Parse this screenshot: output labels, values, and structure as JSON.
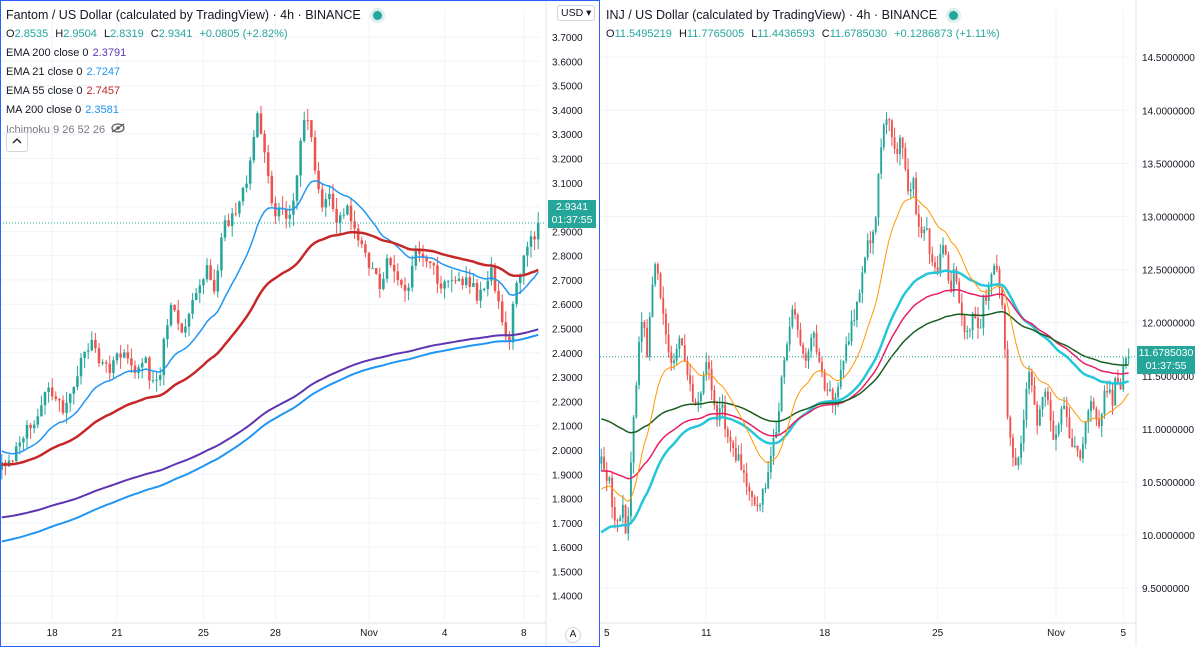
{
  "left": {
    "title": "Fantom / US Dollar (calculated by TradingView) · 4h · BINANCE",
    "ohlc": [
      {
        "k": "O",
        "v": "2.8535"
      },
      {
        "k": "H",
        "v": "2.9504"
      },
      {
        "k": "L",
        "v": "2.8319"
      },
      {
        "k": "C",
        "v": "2.9341"
      }
    ],
    "change": "+0.0805 (+2.82%)",
    "indicators": [
      {
        "label": "EMA 200 close 0",
        "value": "2.3791",
        "color": "#5e35b1"
      },
      {
        "label": "EMA 21 close 0",
        "value": "2.7247",
        "color": "#2196f3"
      },
      {
        "label": "EMA 55 close 0",
        "value": "2.7457",
        "color": "#c62828"
      },
      {
        "label": "MA 200 close 0",
        "value": "2.3581",
        "color": "#2196f3"
      }
    ],
    "ichimoku_label": "Ichimoku 9 26 52 26",
    "collapse_icon": "chevron-up-icon",
    "currency_button": "USD",
    "last_price_tag": {
      "price": "2.9341",
      "countdown": "01:37:55",
      "color": "#26a69a"
    },
    "auto_label": "A"
  },
  "right": {
    "title": "INJ / US Dollar (calculated by TradingView) · 4h · BINANCE",
    "ohlc": [
      {
        "k": "O",
        "v": "11.5495219"
      },
      {
        "k": "H",
        "v": "11.7765005"
      },
      {
        "k": "L",
        "v": "11.4436593"
      },
      {
        "k": "C",
        "v": "11.6785030"
      }
    ],
    "change": "+0.1286873 (+1.11%)",
    "last_price_tag": {
      "price": "11.6785030",
      "countdown": "01:37:55",
      "color": "#26a69a"
    }
  },
  "chart_data": [
    {
      "type": "candlestick",
      "title": "Fantom / US Dollar (calculated by TradingView) · 4h · BINANCE",
      "ylim": [
        1.3,
        3.77
      ],
      "yticks": [
        "1.4000",
        "1.5000",
        "1.6000",
        "1.7000",
        "1.8000",
        "1.9000",
        "2.0000",
        "2.1000",
        "2.2000",
        "2.3000",
        "2.4000",
        "2.5000",
        "2.6000",
        "2.7000",
        "2.8000",
        "2.9000",
        "3.0000",
        "3.1000",
        "3.2000",
        "3.3000",
        "3.4000",
        "3.5000",
        "3.6000",
        "3.7000"
      ],
      "xticks": [
        "18",
        "21",
        "25",
        "28",
        "Nov",
        "4",
        "8"
      ],
      "xtick_index": [
        14,
        32,
        56,
        76,
        102,
        123,
        145
      ],
      "bars": 150,
      "closes": [
        1.96,
        1.94,
        1.96,
        1.98,
        2.02,
        2.05,
        2.08,
        2.1,
        2.13,
        2.17,
        2.2,
        2.22,
        2.25,
        2.23,
        2.2,
        2.18,
        2.19,
        2.22,
        2.28,
        2.35,
        2.38,
        2.4,
        2.43,
        2.42,
        2.38,
        2.34,
        2.32,
        2.35,
        2.38,
        2.4,
        2.38,
        2.35,
        2.33,
        2.34,
        2.36,
        2.4,
        2.33,
        2.28,
        2.26,
        2.3,
        2.45,
        2.55,
        2.62,
        2.56,
        2.5,
        2.52,
        2.58,
        2.6,
        2.63,
        2.7,
        2.75,
        2.72,
        2.66,
        2.7,
        2.85,
        2.94,
        2.9,
        2.98,
        3.02,
        3.05,
        3.08,
        3.15,
        3.3,
        3.39,
        3.25,
        3.2,
        3.05,
        2.95,
        3.02,
        2.98,
        2.94,
        2.96,
        3.05,
        3.2,
        3.35,
        3.4,
        3.3,
        3.15,
        3.08,
        3.0,
        3.02,
        3.05,
        2.96,
        2.92,
        2.98,
        3.0,
        2.94,
        2.9,
        2.88,
        2.82,
        2.78,
        2.75,
        2.7,
        2.68,
        2.72,
        2.78,
        2.74,
        2.7,
        2.66,
        2.64,
        2.68,
        2.76,
        2.86,
        2.8,
        2.77,
        2.75,
        2.74,
        2.72,
        2.69,
        2.68,
        2.72,
        2.7,
        2.7,
        2.68,
        2.72,
        2.7,
        2.66,
        2.63,
        2.65,
        2.7,
        2.73,
        2.72,
        2.62,
        2.55,
        2.49,
        2.46,
        2.6,
        2.7,
        2.77,
        2.82,
        2.86,
        2.8535,
        2.9341
      ],
      "series": [
        {
          "name": "EMA 200 close 0",
          "value": 2.3791,
          "color": "#5e35b1"
        },
        {
          "name": "EMA 21 close 0",
          "value": 2.7247,
          "color": "#2196f3"
        },
        {
          "name": "EMA 55 close 0",
          "value": 2.7457,
          "color": "#c62828"
        },
        {
          "name": "MA 200 close 0",
          "value": 2.3581,
          "color": "#2196f3"
        }
      ],
      "last": 2.9341
    },
    {
      "type": "candlestick",
      "title": "INJ / US Dollar (calculated by TradingView) · 4h · BINANCE",
      "ylim": [
        9.2,
        14.85
      ],
      "yticks": [
        "9.5000000",
        "10.0000000",
        "10.5000000",
        "11.0000000",
        "11.5000000",
        "12.0000000",
        "12.5000000",
        "13.0000000",
        "13.5000000",
        "14.0000000",
        "14.5000000"
      ],
      "xticks": [
        "5",
        "11",
        "18",
        "25",
        "Nov",
        "5"
      ],
      "xtick_index": [
        2,
        39,
        83,
        125,
        169,
        194
      ],
      "bars": 197,
      "closes": [
        10.7,
        10.6,
        10.5,
        10.2,
        10.1,
        10.3,
        9.9,
        10.6,
        11.2,
        11.8,
        12.0,
        11.7,
        12.2,
        12.6,
        12.4,
        12.0,
        11.8,
        11.6,
        11.7,
        11.9,
        11.6,
        11.5,
        11.3,
        11.2,
        11.4,
        11.6,
        11.5,
        11.3,
        11.1,
        11.2,
        11.0,
        10.9,
        10.8,
        10.7,
        10.6,
        10.5,
        10.4,
        10.3,
        10.2,
        10.4,
        10.6,
        10.8,
        11.0,
        11.3,
        11.6,
        11.9,
        12.1,
        12.0,
        11.8,
        11.6,
        11.8,
        11.9,
        11.7,
        11.5,
        11.3,
        11.4,
        11.2,
        11.4,
        11.6,
        11.8,
        11.9,
        12.1,
        12.3,
        12.5,
        12.7,
        12.8,
        13.0,
        13.5,
        13.8,
        14.0,
        13.7,
        13.6,
        13.8,
        13.5,
        13.2,
        13.4,
        13.0,
        12.8,
        12.9,
        12.7,
        12.6,
        12.5,
        12.8,
        12.6,
        12.3,
        12.5,
        12.2,
        12.0,
        11.9,
        12.0,
        12.1,
        11.9,
        12.2,
        12.3,
        12.5,
        12.6,
        12.3,
        12.0,
        11.0,
        10.8,
        10.6,
        10.9,
        11.2,
        11.6,
        11.3,
        11.0,
        11.2,
        11.4,
        11.1,
        10.9,
        11.0,
        11.3,
        11.1,
        10.9,
        10.8,
        10.7,
        10.9,
        11.1,
        11.3,
        11.2,
        11.0,
        11.3,
        11.4,
        11.2,
        11.5,
        11.4,
        11.6,
        11.6785
      ],
      "series": [
        {
          "name": "",
          "color": "#26c6da"
        },
        {
          "name": "",
          "color": "#e91e63"
        },
        {
          "name": "",
          "color": "#1b5e20"
        },
        {
          "name": "",
          "color": "#ff9800"
        }
      ],
      "last": 11.678503
    }
  ]
}
